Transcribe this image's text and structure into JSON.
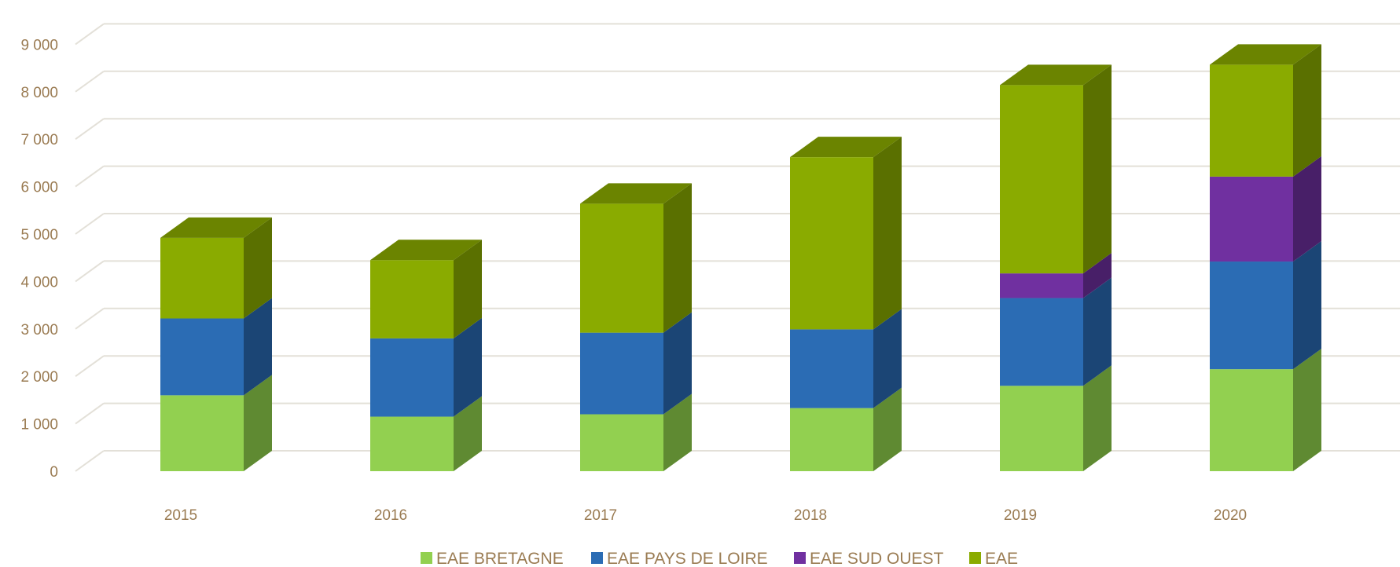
{
  "chart_data": {
    "type": "bar",
    "stacked": true,
    "three_d": true,
    "categories": [
      "2015",
      "2016",
      "2017",
      "2018",
      "2019",
      "2020"
    ],
    "series": [
      {
        "name": "EAE BRETAGNE",
        "values": [
          1600,
          1150,
          1200,
          1330,
          1800,
          2150
        ],
        "color": "#92d050",
        "side_color": "#5f8a32"
      },
      {
        "name": "EAE PAYS DE LOIRE",
        "values": [
          1620,
          1650,
          1720,
          1660,
          1850,
          2270
        ],
        "color": "#2b6cb4",
        "side_color": "#1b4575"
      },
      {
        "name": "EAE SUD OUEST",
        "values": [
          0,
          0,
          0,
          0,
          520,
          1790
        ],
        "color": "#7030a0",
        "side_color": "#481f68"
      },
      {
        "name": "EAE",
        "values": [
          1700,
          1650,
          2720,
          3630,
          3970,
          2360
        ],
        "color": "#8aab00",
        "side_color": "#5a7000",
        "top_color": "#6b8400"
      }
    ],
    "yticks": [
      "0",
      "1 000",
      "2 000",
      "3 000",
      "4 000",
      "5 000",
      "6 000",
      "7 000",
      "8 000",
      "9 000"
    ],
    "ylim": [
      0,
      10000
    ],
    "grid": true,
    "legend_position": "bottom"
  }
}
